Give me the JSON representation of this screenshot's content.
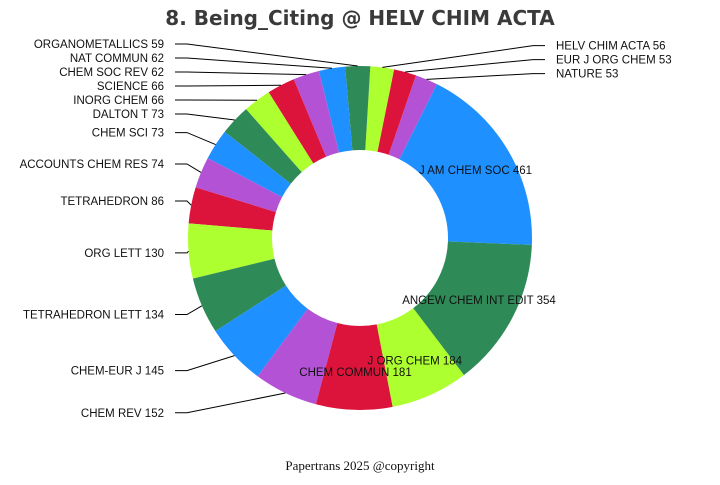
{
  "chart_data": {
    "type": "pie",
    "donut": true,
    "title": "8. Being_Citing @ HELV CHIM ACTA",
    "footer": "Papertrans 2025 @copyright",
    "slices": [
      {
        "label": "J AM CHEM SOC",
        "value": 461,
        "color": "#1e90ff"
      },
      {
        "label": "NATURE",
        "value": 53,
        "color": "#b452d6"
      },
      {
        "label": "EUR J ORG CHEM",
        "value": 53,
        "color": "#dc143c"
      },
      {
        "label": "HELV CHIM ACTA",
        "value": 56,
        "color": "#adff2f"
      },
      {
        "label": "ORGANOMETALLICS",
        "value": 59,
        "color": "#2e8b57"
      },
      {
        "label": "NAT COMMUN",
        "value": 62,
        "color": "#1e90ff"
      },
      {
        "label": "CHEM SOC REV",
        "value": 62,
        "color": "#b452d6"
      },
      {
        "label": "SCIENCE",
        "value": 66,
        "color": "#dc143c"
      },
      {
        "label": "INORG CHEM",
        "value": 66,
        "color": "#adff2f"
      },
      {
        "label": "DALTON T",
        "value": 73,
        "color": "#2e8b57"
      },
      {
        "label": "CHEM SCI",
        "value": 73,
        "color": "#1e90ff"
      },
      {
        "label": "ACCOUNTS CHEM RES",
        "value": 74,
        "color": "#b452d6"
      },
      {
        "label": "TETRAHEDRON",
        "value": 86,
        "color": "#dc143c"
      },
      {
        "label": "ORG LETT",
        "value": 130,
        "color": "#adff2f"
      },
      {
        "label": "TETRAHEDRON LETT",
        "value": 134,
        "color": "#2e8b57"
      },
      {
        "label": "CHEM-EUR J",
        "value": 145,
        "color": "#1e90ff"
      },
      {
        "label": "CHEM REV",
        "value": 152,
        "color": "#b452d6"
      },
      {
        "label": "CHEM COMMUN",
        "value": 181,
        "color": "#dc143c"
      },
      {
        "label": "J ORG CHEM",
        "value": 184,
        "color": "#adff2f"
      },
      {
        "label": "ANGEW CHEM INT EDIT",
        "value": 354,
        "color": "#2e8b57"
      }
    ]
  }
}
